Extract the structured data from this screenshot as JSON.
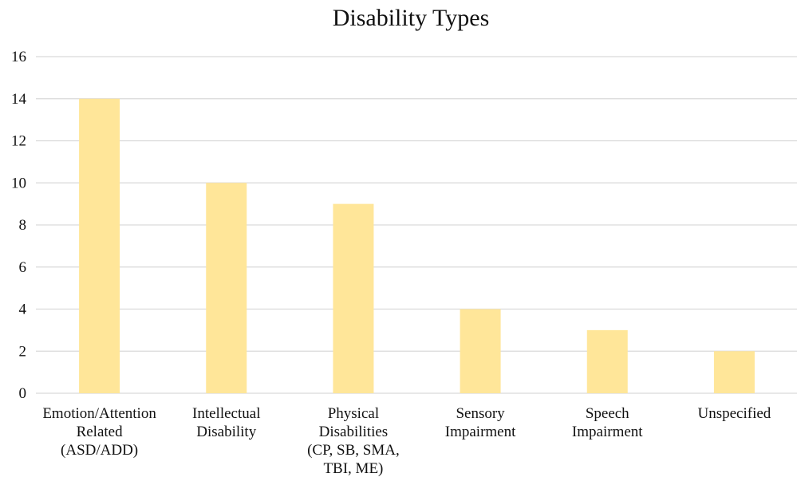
{
  "chart_data": {
    "type": "bar",
    "title": "Disability Types",
    "xlabel": "",
    "ylabel": "",
    "categories": [
      [
        "Emotion/Attention",
        "Related",
        "(ASD/ADD)"
      ],
      [
        "Intellectual",
        "Disability"
      ],
      [
        "Physical",
        "Disabilities",
        "(CP, SB, SMA,",
        "TBI, ME)"
      ],
      [
        "Sensory",
        "Impairment"
      ],
      [
        "Speech",
        "Impairment"
      ],
      [
        "Unspecified"
      ]
    ],
    "values": [
      14,
      10,
      9,
      4,
      3,
      2
    ],
    "ylim": [
      0,
      16
    ],
    "yticks": [
      "0",
      "2",
      "4",
      "6",
      "8",
      "10",
      "12",
      "14",
      "16"
    ],
    "grid": true,
    "bar_color": "#FFE699",
    "grid_color": "#D9D9D9"
  }
}
